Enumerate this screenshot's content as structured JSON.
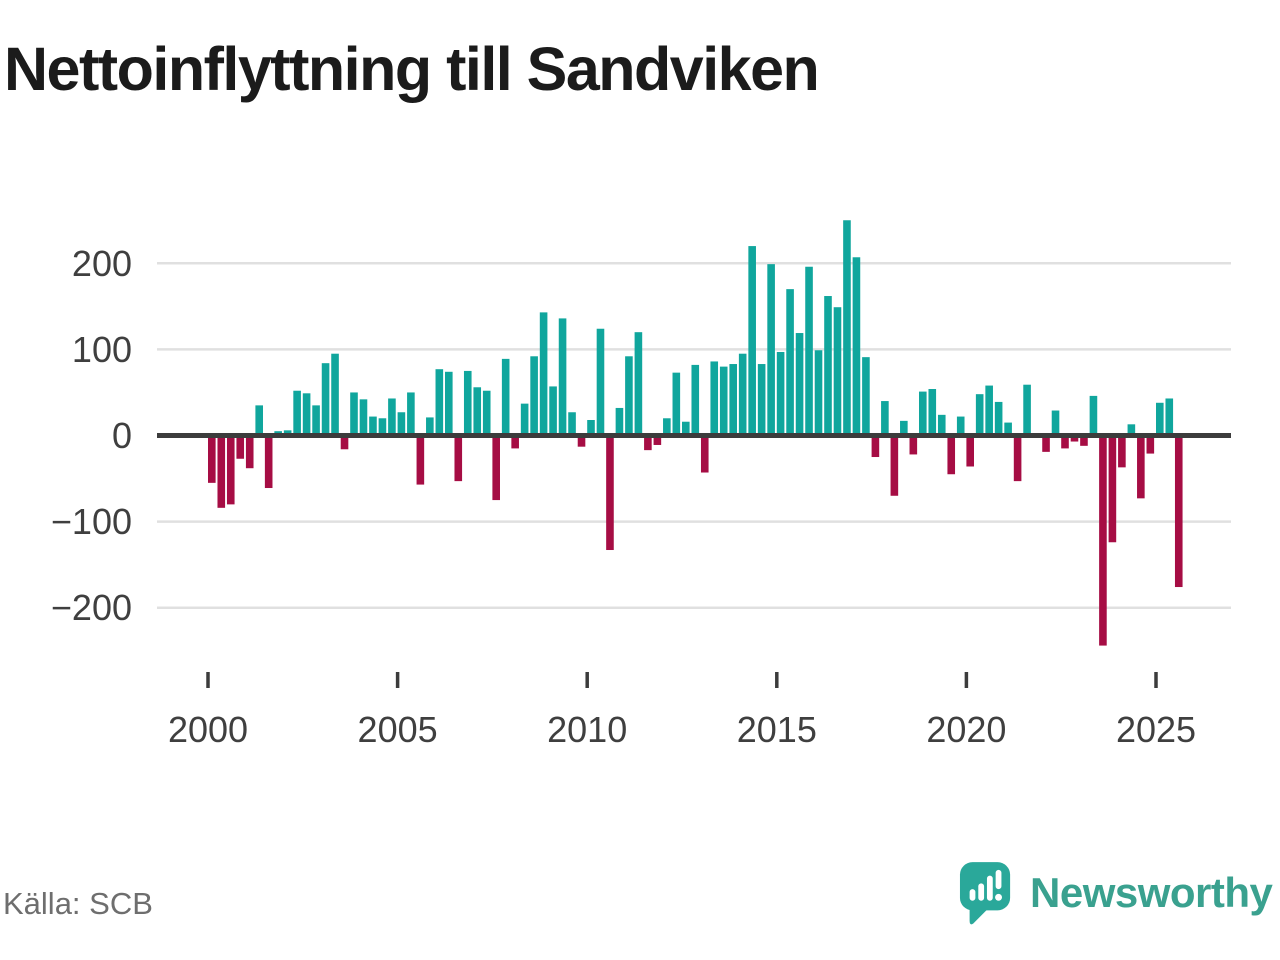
{
  "title": "Nettoinflyttning till Sandviken",
  "source": "Källa: SCB",
  "brand": {
    "name": "Newsworthy"
  },
  "colors": {
    "background": "#ffffff",
    "positive": "#10a69d",
    "negative": "#a60d44",
    "axis": "#3c3c3c",
    "grid": "#e0e0e0",
    "title_text": "#1b1b1b",
    "tick_text": "#3f3f3f",
    "source_text": "#6e6e6e",
    "brand_icon": "#2aa89a",
    "brand_text": "#3aa18f"
  },
  "chart_data": {
    "type": "bar",
    "title": "Nettoinflyttning till Sandviken",
    "frequency": "quarterly",
    "period_start": "2000-Q1",
    "period_end": "2025-Q3",
    "grid": "horizontal",
    "legend": "none",
    "positive_color": "#10a69d",
    "negative_color": "#a60d44",
    "series_by_year": {
      "2000": [
        -55,
        -84,
        -80,
        -27
      ],
      "2001": [
        -38,
        35,
        -61,
        5
      ],
      "2002": [
        6,
        52,
        49,
        35
      ],
      "2003": [
        84,
        95,
        -16,
        50
      ],
      "2004": [
        42,
        22,
        20,
        43
      ],
      "2005": [
        27,
        50,
        -57,
        21
      ],
      "2006": [
        77,
        74,
        -53,
        75
      ],
      "2007": [
        56,
        52,
        -75,
        89
      ],
      "2008": [
        -15,
        37,
        92,
        143
      ],
      "2009": [
        57,
        136,
        27,
        -13
      ],
      "2010": [
        18,
        124,
        -133,
        32
      ],
      "2011": [
        92,
        120,
        -17,
        -11
      ],
      "2012": [
        20,
        73,
        16,
        82
      ],
      "2013": [
        -43,
        86,
        80,
        83
      ],
      "2014": [
        95,
        220,
        83,
        199
      ],
      "2015": [
        97,
        170,
        119,
        196
      ],
      "2016": [
        99,
        162,
        149,
        250
      ],
      "2017": [
        207,
        91,
        -25,
        40
      ],
      "2018": [
        -70,
        17,
        -22,
        51
      ],
      "2019": [
        54,
        24,
        -45,
        22
      ],
      "2020": [
        -36,
        48,
        58,
        39
      ],
      "2021": [
        15,
        -53,
        59,
        0
      ],
      "2022": [
        -19,
        29,
        -15,
        -7
      ],
      "2023": [
        -12,
        46,
        -244,
        -124
      ],
      "2024": [
        -37,
        13,
        -73,
        -21
      ],
      "2025": [
        38,
        43,
        -176
      ]
    },
    "x_axis": {
      "tick_years": [
        2000,
        2005,
        2010,
        2015,
        2020,
        2025
      ],
      "tick_labels": [
        "2000",
        "2005",
        "2010",
        "2015",
        "2020",
        "2025"
      ]
    },
    "y_axis": {
      "ticks": [
        200,
        100,
        0,
        -100,
        -200
      ],
      "tick_labels": [
        "200",
        "100",
        "0",
        "−100",
        "−200"
      ],
      "range": [
        -260,
        262
      ]
    }
  }
}
